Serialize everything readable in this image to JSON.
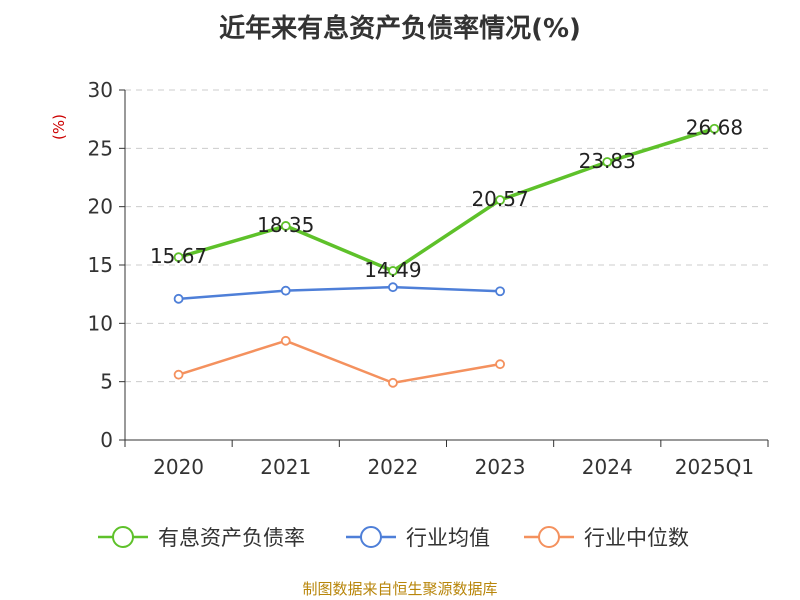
{
  "title": "近年来有息资产负债率情况(%)",
  "source": "制图数据来自恒生聚源数据库",
  "chart_data": {
    "type": "line",
    "categories": [
      "2020",
      "2021",
      "2022",
      "2023",
      "2024",
      "2025Q1"
    ],
    "ylabel": "(%)",
    "ylim": [
      0,
      30
    ],
    "yticks": [
      0,
      5,
      10,
      15,
      20,
      25,
      30
    ],
    "grid": true,
    "legend_position": "bottom",
    "series": [
      {
        "name": "有息资产负债率",
        "color": "#5ec12a",
        "values": [
          15.67,
          18.35,
          14.49,
          20.57,
          23.83,
          26.68
        ],
        "labels": [
          "15.67",
          "18.35",
          "14.49",
          "20.57",
          "23.83",
          "26.68"
        ]
      },
      {
        "name": "行业均值",
        "color": "#4e7fd8",
        "values": [
          12.1,
          12.8,
          13.1,
          12.75,
          null,
          null
        ]
      },
      {
        "name": "行业中位数",
        "color": "#f4915e",
        "values": [
          5.6,
          8.5,
          4.9,
          6.5,
          null,
          null
        ]
      }
    ]
  }
}
